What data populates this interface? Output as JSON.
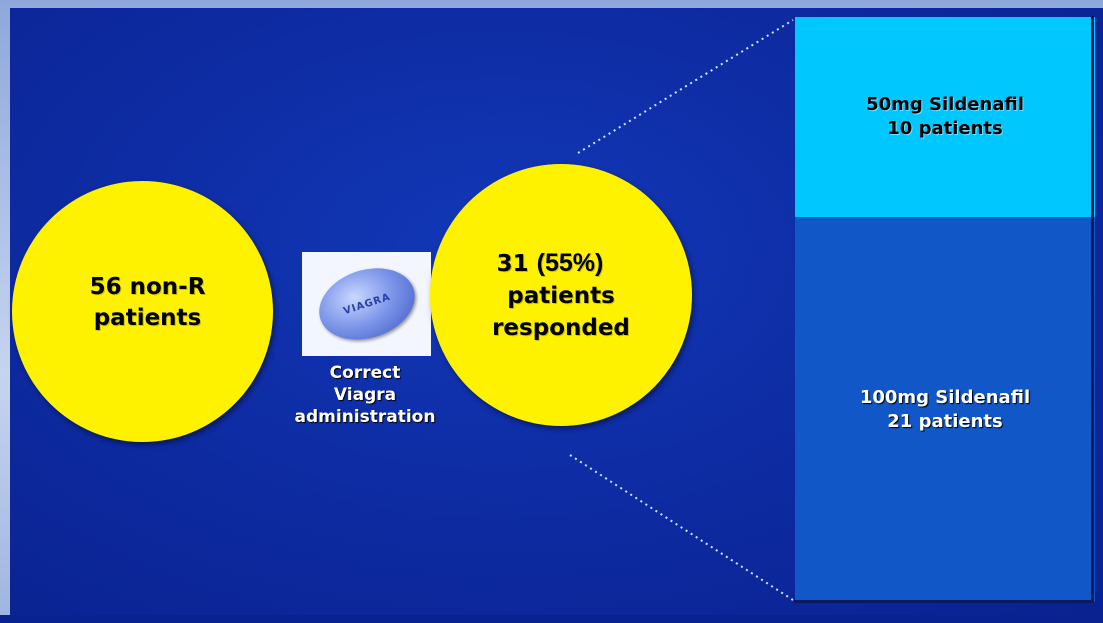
{
  "left_circle": {
    "line1": "56 non-R",
    "line2": "patients"
  },
  "pill": {
    "label": "VIAGRA"
  },
  "admin_label": {
    "line1": "Correct",
    "line2": "Viagra",
    "line3": "administration"
  },
  "right_circle": {
    "count": "31 ",
    "percent": "(55%)",
    "line2": "patients",
    "line3": "responded"
  },
  "dose_boxes": [
    {
      "line1": "50mg Sildenafil",
      "line2": "10 patients",
      "color": "#00c8ff"
    },
    {
      "line1": "100mg Sildenafil",
      "line2": "21 patients",
      "color": "#1257c8"
    }
  ],
  "colors": {
    "background": "#0d2aa0",
    "circle": "#fff200"
  }
}
